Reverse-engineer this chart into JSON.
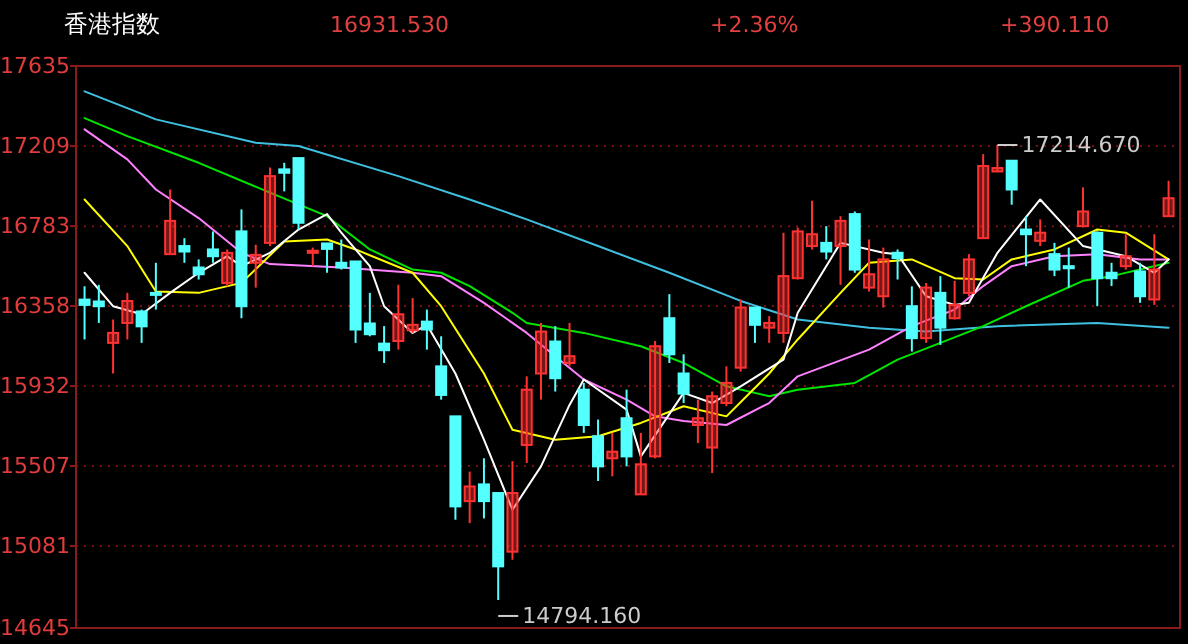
{
  "chart_data": {
    "type": "candlestick",
    "title": "香港指数",
    "annotations": [
      "16931.530",
      "+2.36%",
      "+390.110",
      "17214.670",
      "14794.160"
    ],
    "categories": [
      null,
      null,
      null,
      null,
      null,
      null,
      null,
      null,
      null,
      null,
      null,
      null,
      null,
      null,
      null,
      null,
      null,
      null,
      null,
      null,
      null,
      null,
      null,
      null,
      null,
      null,
      null,
      null,
      null,
      null,
      null,
      null,
      null,
      null,
      null,
      null,
      null,
      null,
      null,
      null,
      null,
      null,
      null,
      null,
      null,
      null,
      null,
      null,
      null,
      null,
      null,
      null,
      null,
      null,
      null,
      null,
      null,
      null,
      null,
      null,
      null,
      null,
      null,
      null,
      null,
      null,
      null,
      null,
      null,
      null,
      null,
      null,
      null,
      null,
      null,
      null,
      null
    ],
    "ylim": [
      14645,
      17635
    ],
    "yticks": [
      14645,
      15081,
      15507,
      15932,
      16358,
      16783,
      17209,
      17635
    ],
    "grid": "y",
    "tick_labels": "y",
    "ohlc": [
      [
        16392,
        16463,
        16180,
        16364
      ],
      [
        16382,
        16471,
        16268,
        16357
      ],
      [
        16162,
        16286,
        15999,
        16215
      ],
      [
        16268,
        16428,
        16180,
        16385
      ],
      [
        16329,
        16339,
        16162,
        16250
      ],
      [
        16428,
        16588,
        16339,
        16421
      ],
      [
        16634,
        16978,
        16634,
        16811
      ],
      [
        16677,
        16719,
        16588,
        16648
      ],
      [
        16563,
        16606,
        16499,
        16527
      ],
      [
        16659,
        16755,
        16588,
        16623
      ],
      [
        16481,
        16659,
        16463,
        16641
      ],
      [
        16755,
        16872,
        16293,
        16357
      ],
      [
        16588,
        16684,
        16456,
        16630
      ],
      [
        16694,
        17095,
        16677,
        17049
      ],
      [
        17085,
        17120,
        16968,
        17067
      ],
      [
        17145,
        17145,
        16765,
        16801
      ],
      [
        16641,
        16669,
        16570,
        16652
      ],
      [
        16691,
        16691,
        16535,
        16662
      ],
      [
        16588,
        16712,
        16552,
        16563
      ],
      [
        16595,
        16595,
        16162,
        16233
      ],
      [
        16265,
        16428,
        16197,
        16208
      ],
      [
        16158,
        16251,
        16055,
        16123
      ],
      [
        16172,
        16471,
        16126,
        16314
      ],
      [
        16229,
        16400,
        16215,
        16258
      ],
      [
        16275,
        16339,
        16126,
        16233
      ],
      [
        16037,
        16197,
        15860,
        15885
      ],
      [
        15771,
        15771,
        15221,
        15292
      ],
      [
        15320,
        15477,
        15203,
        15398
      ],
      [
        15409,
        15548,
        15228,
        15320
      ],
      [
        15363,
        15363,
        14794.16,
        14973
      ],
      [
        15051,
        15533,
        15008,
        15363
      ],
      [
        15619,
        15984,
        15523,
        15913
      ],
      [
        15999,
        16268,
        15860,
        16222
      ],
      [
        16169,
        16251,
        15903,
        15974
      ],
      [
        16055,
        16268,
        16037,
        16091
      ],
      [
        15913,
        15949,
        15683,
        15725
      ],
      [
        15665,
        15754,
        15427,
        15505
      ],
      [
        15548,
        15683,
        15452,
        15583
      ],
      [
        15761,
        15913,
        15505,
        15558
      ],
      [
        15356,
        15683,
        15356,
        15516
      ],
      [
        15558,
        16172,
        15548,
        16144
      ],
      [
        16293,
        16421,
        16055,
        16101
      ],
      [
        15999,
        16101,
        15842,
        15892
      ],
      [
        15725,
        15860,
        15629,
        15761
      ],
      [
        15605,
        15903,
        15469,
        15878
      ],
      [
        15842,
        16037,
        15825,
        15949
      ],
      [
        16030,
        16393,
        16009,
        16350
      ],
      [
        16350,
        16350,
        16162,
        16258
      ],
      [
        16243,
        16304,
        16162,
        16268
      ],
      [
        16215,
        16748,
        16162,
        16517
      ],
      [
        16506,
        16776,
        16499,
        16755
      ],
      [
        16677,
        16918,
        16659,
        16740
      ],
      [
        16694,
        16783,
        16606,
        16648
      ],
      [
        16677,
        16836,
        16471,
        16811
      ],
      [
        16847,
        16861,
        16535,
        16552
      ],
      [
        16456,
        16712,
        16435,
        16527
      ],
      [
        16410,
        16669,
        16350,
        16606
      ],
      [
        16641,
        16659,
        16499,
        16613
      ],
      [
        16357,
        16463,
        16116,
        16187
      ],
      [
        16187,
        16481,
        16162,
        16456
      ],
      [
        16428,
        16517,
        16151,
        16243
      ],
      [
        16293,
        16492,
        16286,
        16364
      ],
      [
        16428,
        16634,
        16410,
        16606
      ],
      [
        16719,
        17166,
        16719,
        17103
      ],
      [
        17074,
        17214.67,
        17074,
        17092
      ],
      [
        17131,
        17131,
        16897,
        16978
      ],
      [
        16765,
        16836,
        16570,
        16740
      ],
      [
        16705,
        16819,
        16677,
        16748
      ],
      [
        16634,
        16694,
        16517,
        16552
      ],
      [
        16570,
        16669,
        16456,
        16559
      ],
      [
        16783,
        16989,
        16776,
        16861
      ],
      [
        16748,
        16755,
        16357,
        16506
      ],
      [
        16535,
        16588,
        16464,
        16506
      ],
      [
        16570,
        16740,
        16552,
        16623
      ],
      [
        16542,
        16588,
        16375,
        16410
      ],
      [
        16393,
        16740,
        16364,
        16552
      ],
      [
        16836,
        17024,
        16836,
        16931.53
      ]
    ],
    "colors": [
      "#54ffff",
      "#54ffff",
      "#ff3232",
      "#ff3232",
      "#54ffff",
      "#54ffff",
      "#ff3232",
      "#54ffff",
      "#54ffff",
      "#54ffff",
      "#ff3232",
      "#54ffff",
      "#ff3232",
      "#ff3232",
      "#54ffff",
      "#54ffff",
      "#ff3232",
      "#54ffff",
      "#54ffff",
      "#54ffff",
      "#54ffff",
      "#54ffff",
      "#ff3232",
      "#ff3232",
      "#54ffff",
      "#54ffff",
      "#54ffff",
      "#ff3232",
      "#54ffff",
      "#54ffff",
      "#ff3232",
      "#ff3232",
      "#ff3232",
      "#54ffff",
      "#ff3232",
      "#54ffff",
      "#54ffff",
      "#ff3232",
      "#54ffff",
      "#ff3232",
      "#ff3232",
      "#54ffff",
      "#54ffff",
      "#ff3232",
      "#ff3232",
      "#ff3232",
      "#ff3232",
      "#54ffff",
      "#ff3232",
      "#ff3232",
      "#ff3232",
      "#ff3232",
      "#54ffff",
      "#ff3232",
      "#54ffff",
      "#ff3232",
      "#ff3232",
      "#54ffff",
      "#54ffff",
      "#ff3232",
      "#54ffff",
      "#ff3232",
      "#ff3232",
      "#ff3232",
      "#ff3232",
      "#54ffff",
      "#54ffff",
      "#ff3232",
      "#54ffff",
      "#54ffff",
      "#ff3232",
      "#54ffff",
      "#54ffff",
      "#ff3232",
      "#54ffff",
      "#ff3232",
      "#ff3232"
    ],
    "series": [
      {
        "type": "line",
        "color": "#40c0e0",
        "values": [
          17500,
          null,
          null,
          null,
          null,
          17351,
          null,
          null,
          null,
          null,
          null,
          null,
          17227,
          null,
          null,
          17209,
          null,
          null,
          null,
          null,
          null,
          null,
          17049,
          null,
          null,
          null,
          null,
          16925,
          null,
          null,
          null,
          16819,
          null,
          null,
          null,
          null,
          16677,
          null,
          null,
          null,
          null,
          16535,
          null,
          null,
          null,
          null,
          16385,
          null,
          null,
          null,
          16286,
          null,
          null,
          null,
          null,
          16243,
          null,
          null,
          null,
          16222,
          null,
          null,
          null,
          null,
          16251,
          null,
          null,
          null,
          null,
          null,
          null,
          16268,
          null,
          null,
          null,
          null,
          16243
        ]
      },
      {
        "type": "line",
        "color": "#00e600",
        "values": [
          17358,
          null,
          null,
          17262,
          null,
          null,
          null,
          null,
          17120,
          null,
          null,
          null,
          null,
          16961,
          null,
          null,
          null,
          16836,
          null,
          null,
          16659,
          null,
          null,
          16552,
          null,
          16535,
          null,
          16464,
          null,
          null,
          16322,
          16268,
          null,
          null,
          null,
          16215,
          null,
          null,
          null,
          16144,
          null,
          null,
          16055,
          null,
          null,
          15931,
          null,
          null,
          15878,
          null,
          15913,
          null,
          null,
          null,
          15949,
          null,
          null,
          16073,
          null,
          null,
          16162,
          null,
          null,
          16251,
          null,
          null,
          16357,
          null,
          null,
          null,
          16492,
          null,
          16517,
          null,
          null,
          null,
          16588
        ]
      },
      {
        "type": "line",
        "color": "#ff80ff",
        "values": [
          17298,
          null,
          null,
          17138,
          null,
          16978,
          null,
          null,
          16826,
          null,
          null,
          16641,
          null,
          16581,
          null,
          null,
          null,
          null,
          16563,
          null,
          null,
          null,
          null,
          16535,
          null,
          16517,
          null,
          null,
          16375,
          null,
          null,
          16215,
          null,
          null,
          null,
          15967,
          null,
          null,
          15860,
          null,
          15771,
          null,
          15746,
          null,
          null,
          15725,
          null,
          null,
          15842,
          null,
          15984,
          null,
          null,
          null,
          null,
          16126,
          null,
          null,
          16251,
          null,
          null,
          16339,
          null,
          16464,
          null,
          16570,
          null,
          null,
          16623,
          null,
          null,
          16634,
          null,
          null,
          16606,
          null,
          16606
        ]
      },
      {
        "type": "line",
        "color": "#ffff00",
        "values": [
          16925,
          null,
          null,
          16677,
          null,
          16435,
          null,
          null,
          16428,
          null,
          null,
          16481,
          null,
          null,
          16701,
          null,
          null,
          16712,
          null,
          16659,
          null,
          null,
          null,
          16535,
          null,
          16357,
          null,
          null,
          15999,
          null,
          15700,
          null,
          null,
          15647,
          null,
          null,
          15665,
          null,
          null,
          15736,
          null,
          null,
          15825,
          null,
          null,
          15771,
          null,
          null,
          15999,
          null,
          16180,
          null,
          null,
          16428,
          null,
          16588,
          null,
          null,
          16606,
          null,
          null,
          16506,
          null,
          16499,
          null,
          16606,
          null,
          null,
          16659,
          null,
          null,
          16765,
          null,
          16748,
          null,
          null,
          16606
        ]
      },
      {
        "type": "line",
        "color": "#ffffff",
        "values": [
          16535,
          null,
          16357,
          null,
          16314,
          null,
          16428,
          null,
          16535,
          null,
          16623,
          16570,
          null,
          16641,
          null,
          16765,
          null,
          16847,
          16748,
          null,
          16570,
          16357,
          null,
          16215,
          16258,
          null,
          15999,
          null,
          15647,
          null,
          15274,
          null,
          15505,
          null,
          15832,
          15967,
          null,
          null,
          15807,
          15558,
          null,
          null,
          15896,
          null,
          15842,
          null,
          15931,
          null,
          null,
          16073,
          16322,
          null,
          null,
          16694,
          null,
          null,
          16641,
          16634,
          null,
          16410,
          null,
          16364,
          16375,
          null,
          16641,
          null,
          null,
          16925,
          null,
          null,
          16677,
          null,
          null,
          16623,
          null,
          16535,
          16606
        ]
      }
    ]
  }
}
